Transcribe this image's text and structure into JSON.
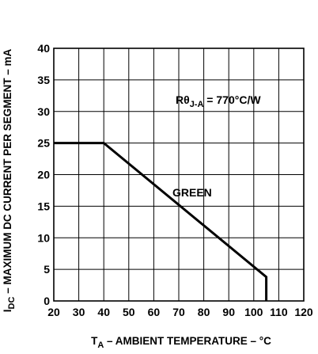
{
  "chart_data": {
    "type": "line",
    "xlabel": {
      "main": "T",
      "sub": "A",
      "rest": " – AMBIENT TEMPERATURE – °C"
    },
    "ylabel": {
      "main": "I",
      "sub": "DC",
      "rest": " – MAXIMUM DC CURRENT PER SEGMENT – mA"
    },
    "xlim": [
      20,
      120
    ],
    "ylim": [
      0,
      40
    ],
    "x_ticks": [
      20,
      30,
      40,
      50,
      60,
      70,
      80,
      90,
      100,
      110,
      120
    ],
    "y_ticks": [
      0,
      5,
      10,
      15,
      20,
      25,
      30,
      35,
      40
    ],
    "grid": true,
    "series": [
      {
        "name": "GREEN",
        "x": [
          20,
          40,
          105,
          105
        ],
        "y": [
          25,
          25,
          3.8,
          0
        ]
      }
    ],
    "annotations": {
      "thermal_resistance": {
        "main": "Rθ",
        "sub": "J-A",
        "rest": " = 770°C/W"
      }
    }
  }
}
